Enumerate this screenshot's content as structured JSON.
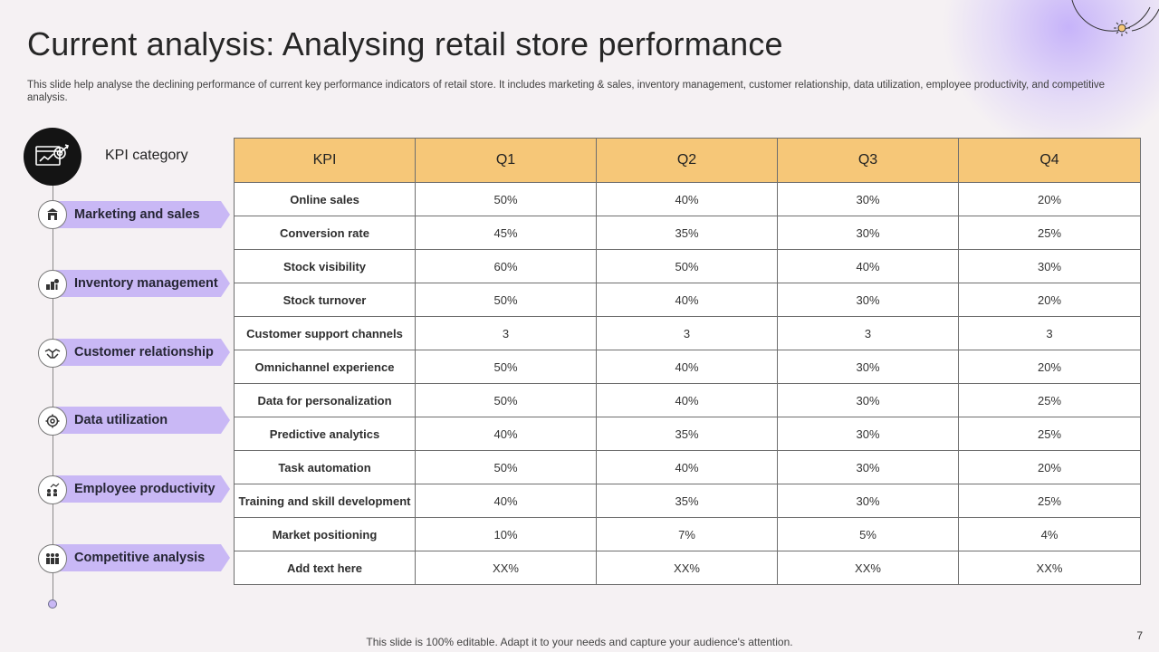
{
  "slide": {
    "title": "Current analysis: Analysing retail store performance",
    "subtitle": "This slide help analyse the declining performance of current key performance indicators of retail store. It includes marketing & sales, inventory management, customer relationship, data utilization, employee productivity,  and competitive analysis.",
    "footer": "This slide is 100% editable. Adapt it to your needs and capture your audience's attention.",
    "page_number": "7"
  },
  "sidebar": {
    "header_label": "KPI category",
    "header_icon": "dashboard-target-icon",
    "categories": [
      {
        "label": "Marketing and sales",
        "icon": "store-icon"
      },
      {
        "label": "Inventory management",
        "icon": "inventory-icon"
      },
      {
        "label": "Customer relationship",
        "icon": "handshake-icon"
      },
      {
        "label": "Data utilization",
        "icon": "gear-data-icon"
      },
      {
        "label": "Employee productivity",
        "icon": "team-growth-icon"
      },
      {
        "label": "Competitive analysis",
        "icon": "people-comparison-icon"
      }
    ]
  },
  "table": {
    "headers": [
      "KPI",
      "Q1",
      "Q2",
      "Q3",
      "Q4"
    ],
    "rows": [
      [
        "Online sales",
        "50%",
        "40%",
        "30%",
        "20%"
      ],
      [
        "Conversion  rate",
        "45%",
        "35%",
        "30%",
        "25%"
      ],
      [
        "Stock visibility",
        "60%",
        "50%",
        "40%",
        "30%"
      ],
      [
        "Stock turnover",
        "50%",
        "40%",
        "30%",
        "20%"
      ],
      [
        "Customer  support channels",
        "3",
        "3",
        "3",
        "3"
      ],
      [
        "Omnichannel experience",
        "50%",
        "40%",
        "30%",
        "20%"
      ],
      [
        "Data for  personalization",
        "50%",
        "40%",
        "30%",
        "25%"
      ],
      [
        "Predictive analytics",
        "40%",
        "35%",
        "30%",
        "25%"
      ],
      [
        "Task automation",
        "50%",
        "40%",
        "30%",
        "20%"
      ],
      [
        "Training and skill development",
        "40%",
        "35%",
        "30%",
        "25%"
      ],
      [
        "Market positioning",
        "10%",
        "7%",
        "5%",
        "4%"
      ],
      [
        "Add text here",
        "XX%",
        "XX%",
        "XX%",
        "XX%"
      ]
    ]
  },
  "colors": {
    "background": "#f5f1f3",
    "header_fill": "#f6c778",
    "category_fill": "#c9b8f5",
    "icon_dark": "#141414"
  }
}
